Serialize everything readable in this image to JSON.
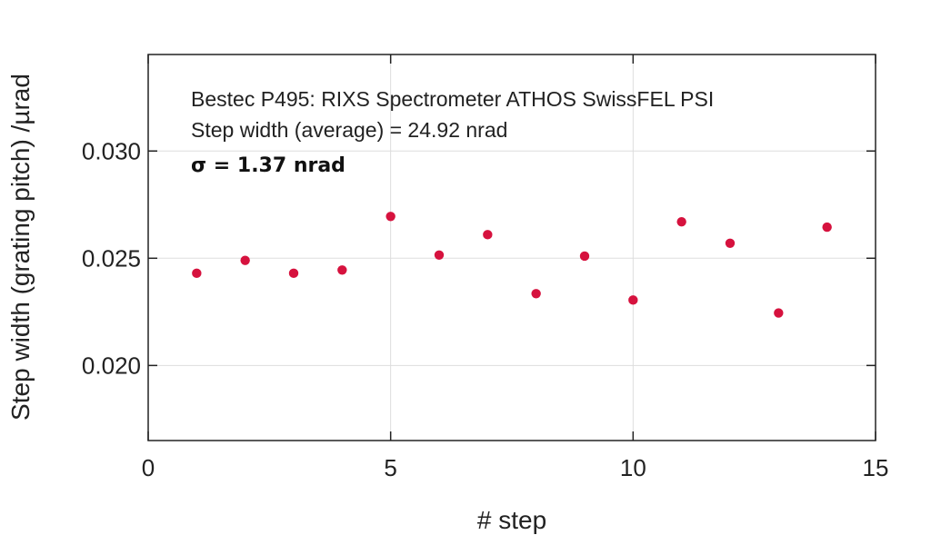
{
  "chart_data": {
    "type": "scatter",
    "title": "",
    "xlabel": "# step",
    "ylabel": "Step width (grating pitch) /µrad",
    "xlim": [
      0,
      15
    ],
    "ylim": [
      0.0165,
      0.0345
    ],
    "xticks": [
      0,
      5,
      10,
      15
    ],
    "yticks": [
      0.02,
      0.025,
      0.03
    ],
    "xtick_labels": [
      "0",
      "5",
      "10",
      "15"
    ],
    "ytick_labels": [
      "0.020",
      "0.025",
      "0.030"
    ],
    "grid": true,
    "annotations": [
      "Bestec P495: RIXS Spectrometer ATHOS SwissFEL PSI",
      "Step width (average) = 24.92 nrad",
      "σ = 1.37 nrad"
    ],
    "marker_color": "#d6123e",
    "series": [
      {
        "x": [
          1,
          2,
          3,
          4,
          5,
          6,
          7,
          8,
          9,
          10,
          11,
          12,
          13,
          14
        ],
        "values": [
          0.0243,
          0.0249,
          0.0243,
          0.02445,
          0.02695,
          0.02515,
          0.0261,
          0.02335,
          0.0251,
          0.02305,
          0.0267,
          0.0257,
          0.02245,
          0.02645
        ]
      }
    ]
  }
}
